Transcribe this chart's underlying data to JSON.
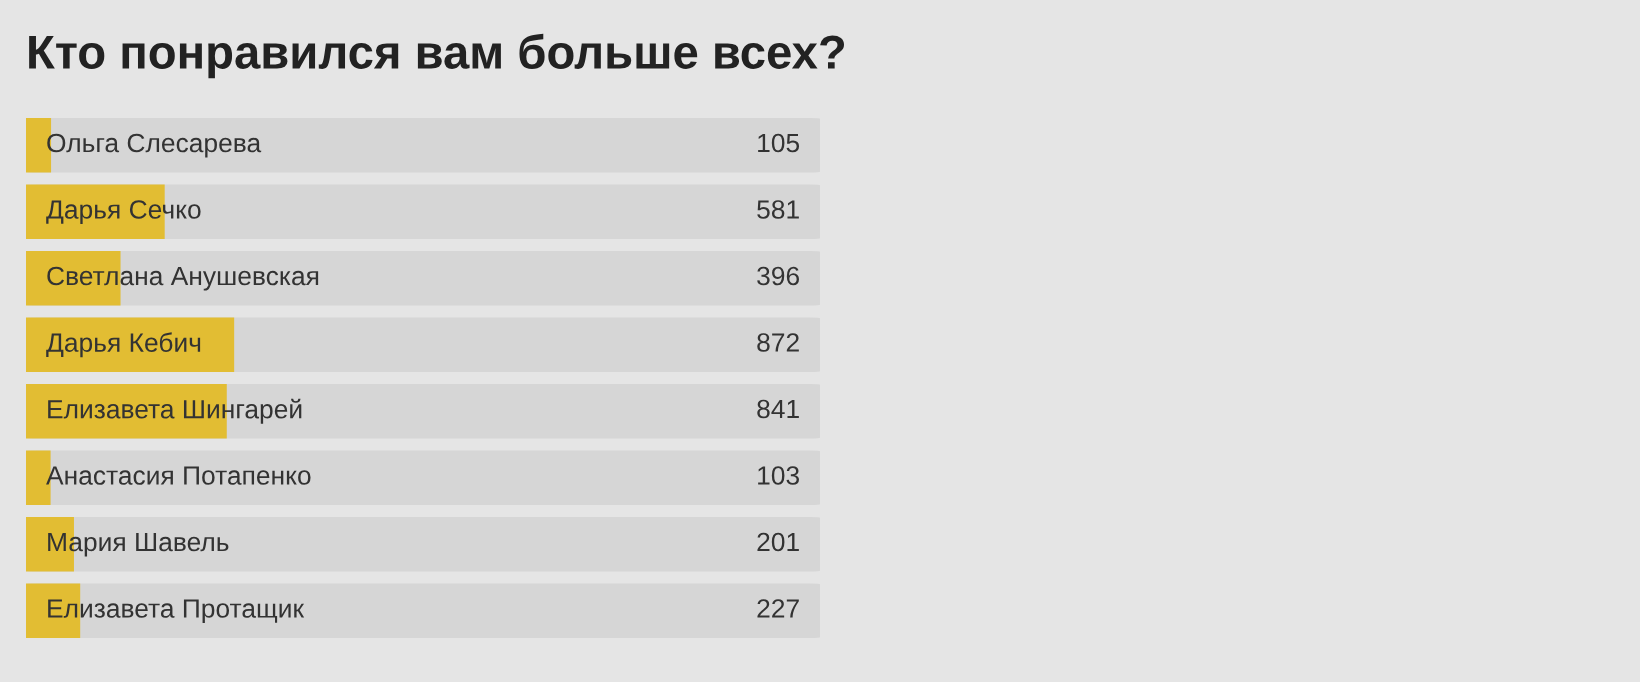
{
  "chart_data": {
    "type": "bar",
    "orientation": "horizontal",
    "title": "Кто понравился вам больше всех?",
    "categories": [
      "Ольга Слесарева",
      "Дарья Сечко",
      "Светлана Анушевская",
      "Дарья Кебич",
      "Елизавета Шингарей",
      "Анастасия Потапенко",
      "Мария Шавель",
      "Елизавета Протащик"
    ],
    "values": [
      105,
      581,
      396,
      872,
      841,
      103,
      201,
      227
    ],
    "color": "#e2bd33",
    "data_labels": true,
    "tick_labels": "y"
  }
}
